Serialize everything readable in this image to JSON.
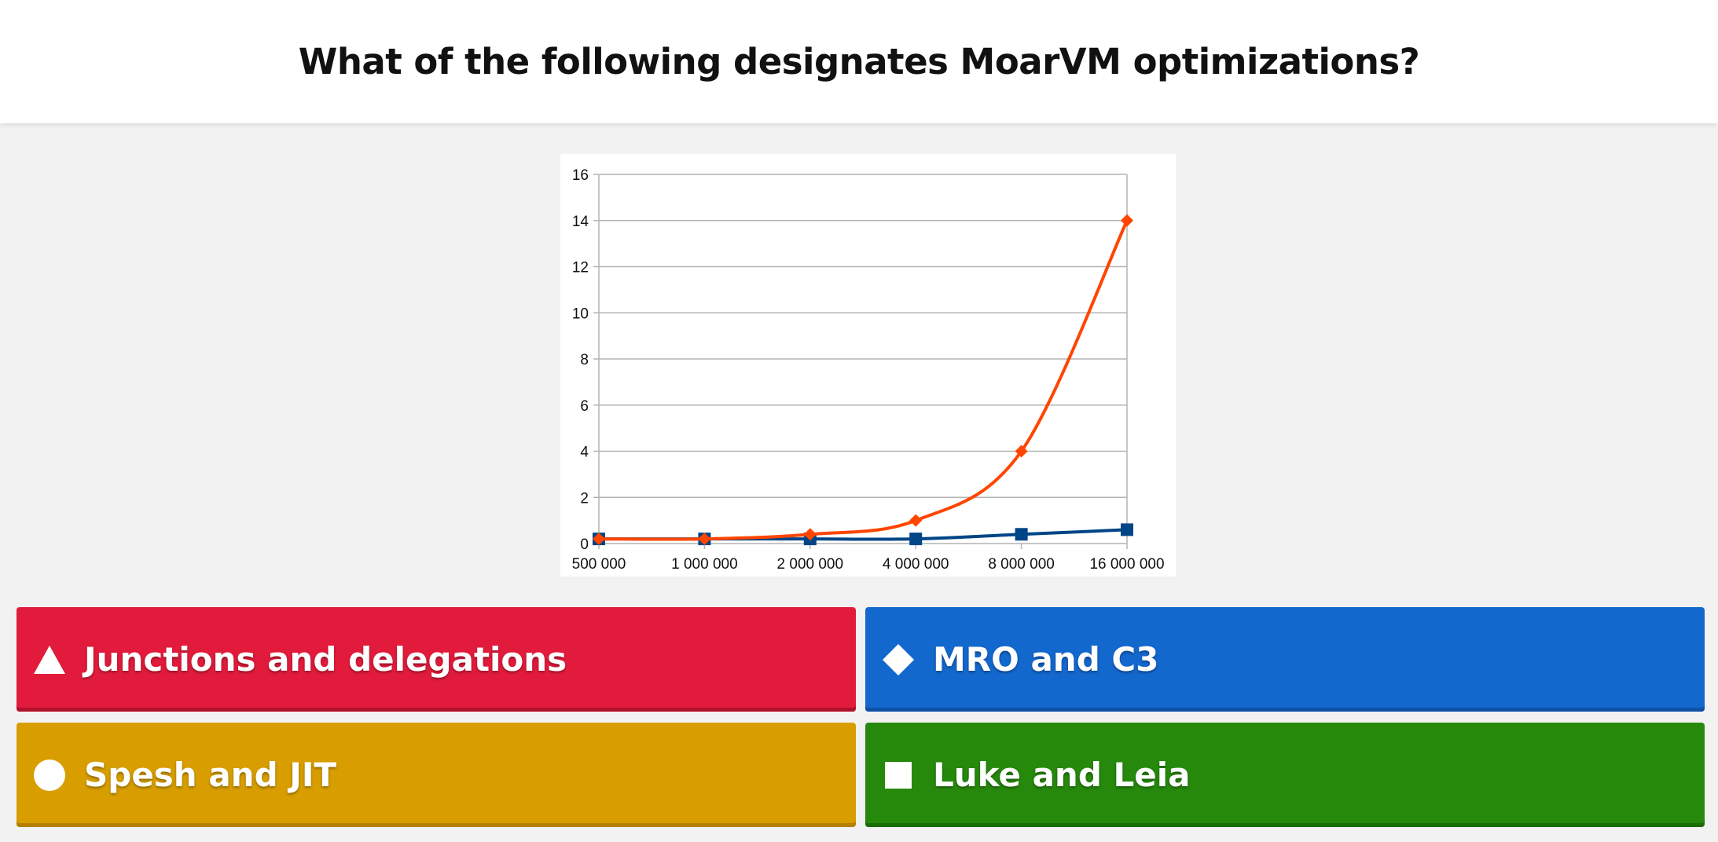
{
  "question": "What of the following designates MoarVM optimizations?",
  "answers": [
    {
      "label": "Junctions and delegations",
      "shape": "triangle-icon",
      "color": "#e21b3c"
    },
    {
      "label": "MRO and C3",
      "shape": "diamond-icon",
      "color": "#1368ce"
    },
    {
      "label": "Spesh and JIT",
      "shape": "circle-icon",
      "color": "#d89e00"
    },
    {
      "label": "Luke and Leia",
      "shape": "square-icon",
      "color": "#26890c"
    }
  ],
  "chart_data": {
    "type": "line",
    "categories": [
      "500 000",
      "1 000 000",
      "2 000 000",
      "4 000 000",
      "8 000 000",
      "16 000 000"
    ],
    "series": [
      {
        "values": [
          0.2,
          0.2,
          0.4,
          1,
          4,
          14
        ],
        "color": "#ff4500",
        "marker": "diamond"
      },
      {
        "values": [
          0.2,
          0.2,
          0.2,
          0.2,
          0.4,
          0.6
        ],
        "color": "#004586",
        "marker": "square"
      }
    ],
    "yticks": [
      0,
      2,
      4,
      6,
      8,
      10,
      12,
      14,
      16
    ],
    "ylim": [
      0,
      16
    ],
    "title": "",
    "xlabel": "",
    "ylabel": "",
    "grid": true,
    "legend": false
  }
}
